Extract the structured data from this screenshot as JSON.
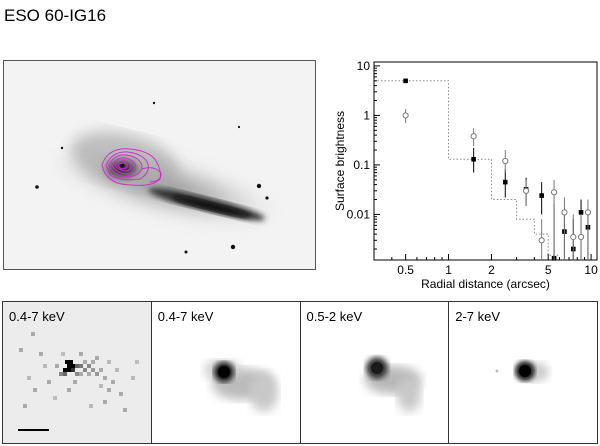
{
  "figure": {
    "title": "ESO 60-IG16"
  },
  "chart_data": {
    "type": "scatter",
    "xlabel": "Radial distance (arcsec)",
    "ylabel": "Surface brightness",
    "xscale": "log",
    "yscale": "log",
    "xlim": [
      0.3,
      11
    ],
    "ylim": [
      0.0012,
      12
    ],
    "xticks": [
      {
        "v": 0.5,
        "label": "0.5"
      },
      {
        "v": 1,
        "label": "1"
      },
      {
        "v": 2,
        "label": "2"
      },
      {
        "v": 5,
        "label": "5"
      },
      {
        "v": 10,
        "label": "10"
      }
    ],
    "yticks": [
      {
        "v": 10,
        "label": "10"
      },
      {
        "v": 1,
        "label": "1"
      },
      {
        "v": 0.1,
        "label": "0.1"
      },
      {
        "v": 0.01,
        "label": "0.01"
      }
    ],
    "grid": false,
    "series": [
      {
        "style": "filled-square",
        "points": [
          {
            "x": 0.5,
            "y": 5.0,
            "lo": 5.0,
            "hi": 5.0
          },
          {
            "x": 1.5,
            "y": 0.13,
            "lo": 0.07,
            "hi": 0.22
          },
          {
            "x": 2.5,
            "y": 0.045,
            "lo": 0.022,
            "hi": 0.08
          },
          {
            "x": 3.5,
            "y": 0.032,
            "lo": 0.015,
            "hi": 0.055
          },
          {
            "x": 4.5,
            "y": 0.024,
            "lo": 0.01,
            "hi": 0.045
          },
          {
            "x": 5.5,
            "y": 0.0013,
            "lo": 0.0012,
            "hi": 0.016
          },
          {
            "x": 6.5,
            "y": 0.0045,
            "lo": 0.0012,
            "hi": 0.012
          },
          {
            "x": 7.5,
            "y": 0.002,
            "lo": 0.0012,
            "hi": 0.008
          },
          {
            "x": 8.5,
            "y": 0.011,
            "lo": 0.0012,
            "hi": 0.02
          },
          {
            "x": 9.5,
            "y": 0.0055,
            "lo": 0.0012,
            "hi": 0.012
          }
        ]
      },
      {
        "style": "open-circle",
        "points": [
          {
            "x": 0.5,
            "y": 1.0,
            "lo": 0.7,
            "hi": 1.35
          },
          {
            "x": 1.5,
            "y": 0.38,
            "lo": 0.24,
            "hi": 0.55
          },
          {
            "x": 2.5,
            "y": 0.12,
            "lo": 0.07,
            "hi": 0.2
          },
          {
            "x": 3.5,
            "y": 0.03,
            "lo": 0.015,
            "hi": 0.05
          },
          {
            "x": 4.5,
            "y": 0.003,
            "lo": 0.0012,
            "hi": 0.008
          },
          {
            "x": 5.5,
            "y": 0.028,
            "lo": 0.0012,
            "hi": 0.05
          },
          {
            "x": 6.5,
            "y": 0.011,
            "lo": 0.0012,
            "hi": 0.022
          },
          {
            "x": 7.5,
            "y": 0.0035,
            "lo": 0.0012,
            "hi": 0.01
          },
          {
            "x": 8.5,
            "y": 0.0035,
            "lo": 0.0012,
            "hi": 0.01
          },
          {
            "x": 9.5,
            "y": 0.011,
            "lo": 0.0012,
            "hi": 0.02
          }
        ]
      }
    ],
    "model_steps": [
      {
        "x": 0.3,
        "y": 5.0
      },
      {
        "x": 1.0,
        "y": 5.0
      },
      {
        "x": 1.0,
        "y": 0.13
      },
      {
        "x": 2.0,
        "y": 0.13
      },
      {
        "x": 2.0,
        "y": 0.02
      },
      {
        "x": 3.0,
        "y": 0.02
      },
      {
        "x": 3.0,
        "y": 0.008
      },
      {
        "x": 4.0,
        "y": 0.008
      },
      {
        "x": 4.0,
        "y": 0.004
      },
      {
        "x": 5.0,
        "y": 0.004
      },
      {
        "x": 5.0,
        "y": 0.0015
      },
      {
        "x": 6.0,
        "y": 0.0015
      }
    ]
  },
  "panels": [
    {
      "label": "0.4-7 keV"
    },
    {
      "label": "0.4-7 keV"
    },
    {
      "label": "0.5-2 keV"
    },
    {
      "label": "2-7 keV"
    }
  ]
}
